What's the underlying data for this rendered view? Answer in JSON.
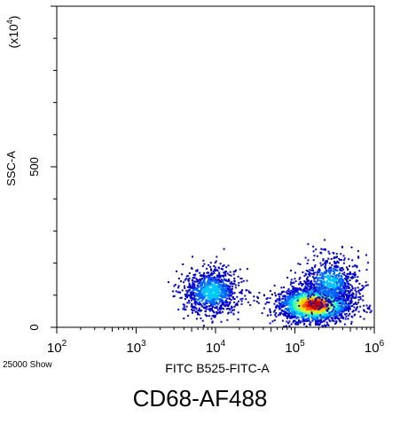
{
  "caption": "CD68-AF488",
  "events_label": "25000 Show",
  "chart_data": {
    "type": "scatter",
    "subtype": "density-dot-plot",
    "title": "",
    "xlabel": "FITC B525-FITC-A",
    "ylabel": "SSC-A",
    "y_multiplier_label": "(x10",
    "y_multiplier_exp": "4",
    "x_scale": "log",
    "xlim": [
      100,
      1000000
    ],
    "ylim": [
      0,
      1000
    ],
    "x_ticks": [
      {
        "value": 100,
        "base": "10",
        "exp": "2"
      },
      {
        "value": 1000,
        "base": "10",
        "exp": "3"
      },
      {
        "value": 10000,
        "base": "10",
        "exp": "4"
      },
      {
        "value": 100000,
        "base": "10",
        "exp": "5"
      },
      {
        "value": 1000000,
        "base": "10",
        "exp": "6"
      }
    ],
    "y_ticks": [
      {
        "value": 0,
        "label": "0"
      },
      {
        "value": 500,
        "label": "500"
      }
    ],
    "grid": false,
    "color_scale": [
      "#0000c8",
      "#0064ff",
      "#00c8ff",
      "#40ffb0",
      "#c0ff40",
      "#ffd000",
      "#ff5000",
      "#c00000"
    ],
    "populations": [
      {
        "x_center_log": 3.95,
        "y_center": 110,
        "x_sd_log": 0.18,
        "y_sd": 35,
        "count": 1000,
        "peak_density": 0.35
      },
      {
        "x_center_log": 5.25,
        "y_center": 70,
        "x_sd_log": 0.24,
        "y_sd": 28,
        "count": 2600,
        "peak_density": 1.0
      },
      {
        "x_center_log": 5.45,
        "y_center": 140,
        "x_sd_log": 0.18,
        "y_sd": 40,
        "count": 700,
        "peak_density": 0.3
      }
    ]
  }
}
